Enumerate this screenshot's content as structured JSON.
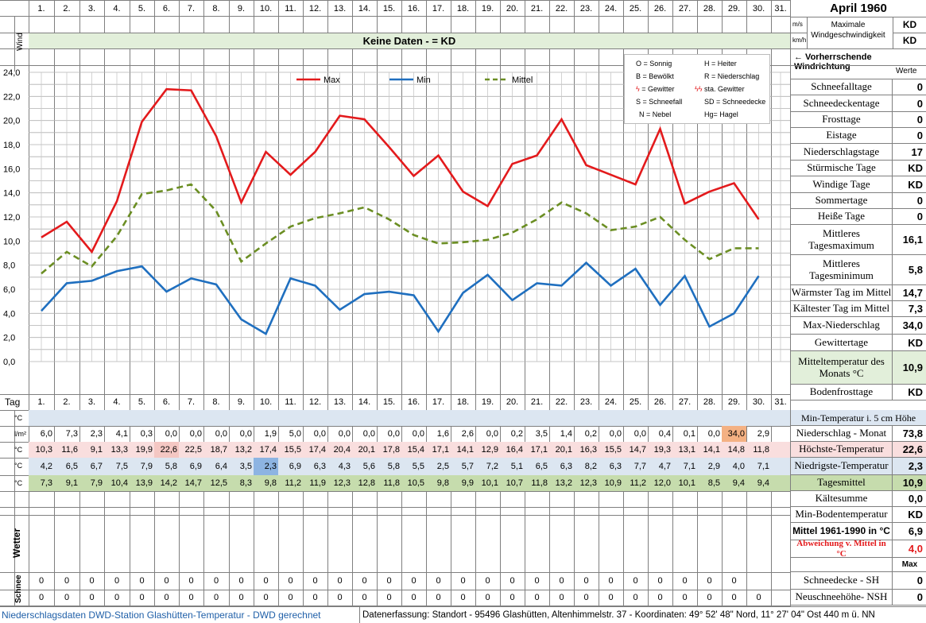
{
  "header": {
    "title": "April 1960",
    "wind_label": "Wind",
    "wind_unit_ms": "m/s",
    "wind_unit_kmh": "km/h",
    "max_wind_label": "Maximale Windgeschwindigkeit",
    "max_wind_ms": "KD",
    "max_wind_kmh": "KD",
    "no_data_banner": "Keine Daten -  = KD",
    "prevailing_wind": "← Vorherrschende Windrichtung",
    "values_header": "Werte"
  },
  "days": [
    "1.",
    "2.",
    "3.",
    "4.",
    "5.",
    "6.",
    "7.",
    "8.",
    "9.",
    "10.",
    "11.",
    "12.",
    "13.",
    "14.",
    "15.",
    "16.",
    "17.",
    "18.",
    "19.",
    "20.",
    "21.",
    "22.",
    "23.",
    "24.",
    "25.",
    "26.",
    "27.",
    "28.",
    "29.",
    "30.",
    "31."
  ],
  "tag_label": "Tag",
  "legend_codes": [
    "O = Sonnig",
    "H = Heiter",
    "B = Bewölkt",
    "R = Niederschlag",
    "= Gewitter",
    "sta. Gewitter",
    "S = Schneefall",
    "SD = Schneedecke",
    "N = Nebel",
    "Hg= Hagel"
  ],
  "chart_data": {
    "type": "line",
    "x": [
      1,
      2,
      3,
      4,
      5,
      6,
      7,
      8,
      9,
      10,
      11,
      12,
      13,
      14,
      15,
      16,
      17,
      18,
      19,
      20,
      21,
      22,
      23,
      24,
      25,
      26,
      27,
      28,
      29,
      30
    ],
    "series": [
      {
        "name": "Max",
        "color": "#e31a1c",
        "values": [
          10.3,
          11.6,
          9.1,
          13.3,
          19.9,
          22.6,
          22.5,
          18.7,
          13.2,
          17.4,
          15.5,
          17.4,
          20.4,
          20.1,
          17.8,
          15.4,
          17.1,
          14.1,
          12.9,
          16.4,
          17.1,
          20.1,
          16.3,
          15.5,
          14.7,
          19.3,
          13.1,
          14.1,
          14.8,
          11.8
        ]
      },
      {
        "name": "Min",
        "color": "#1f6fbf",
        "values": [
          4.2,
          6.5,
          6.7,
          7.5,
          7.9,
          5.8,
          6.9,
          6.4,
          3.5,
          2.3,
          6.9,
          6.3,
          4.3,
          5.6,
          5.8,
          5.5,
          2.5,
          5.7,
          7.2,
          5.1,
          6.5,
          6.3,
          8.2,
          6.3,
          7.7,
          4.7,
          7.1,
          2.9,
          4.0,
          7.1
        ]
      },
      {
        "name": "Mittel",
        "color": "#6b8e23",
        "values": [
          7.3,
          9.1,
          7.9,
          10.4,
          13.9,
          14.2,
          14.7,
          12.5,
          8.3,
          9.8,
          11.2,
          11.9,
          12.3,
          12.8,
          11.8,
          10.5,
          9.8,
          9.9,
          10.1,
          10.7,
          11.8,
          13.2,
          12.3,
          10.9,
          11.2,
          12.0,
          10.1,
          8.5,
          9.4,
          9.4
        ]
      }
    ],
    "y_ticks": [
      "24,0",
      "22,0",
      "20,0",
      "18,0",
      "16,0",
      "14,0",
      "12,0",
      "10,0",
      "8,0",
      "6,0",
      "4,0",
      "2,0",
      "0,0"
    ],
    "ylim": [
      0,
      24
    ],
    "grid": true,
    "legend": "top-center"
  },
  "rows": {
    "unit_c": "°C",
    "unit_lm": "l/m²",
    "precip": [
      "6,0",
      "7,3",
      "2,3",
      "4,1",
      "0,3",
      "0,0",
      "0,0",
      "0,0",
      "0,0",
      "1,9",
      "5,0",
      "0,0",
      "0,0",
      "0,0",
      "0,0",
      "0,0",
      "1,6",
      "2,6",
      "0,0",
      "0,2",
      "3,5",
      "1,4",
      "0,2",
      "0,0",
      "0,0",
      "0,4",
      "0,1",
      "0,0",
      "34,0",
      "2,9",
      ""
    ],
    "max": [
      "10,3",
      "11,6",
      "9,1",
      "13,3",
      "19,9",
      "22,6",
      "22,5",
      "18,7",
      "13,2",
      "17,4",
      "15,5",
      "17,4",
      "20,4",
      "20,1",
      "17,8",
      "15,4",
      "17,1",
      "14,1",
      "12,9",
      "16,4",
      "17,1",
      "20,1",
      "16,3",
      "15,5",
      "14,7",
      "19,3",
      "13,1",
      "14,1",
      "14,8",
      "11,8",
      ""
    ],
    "min": [
      "4,2",
      "6,5",
      "6,7",
      "7,5",
      "7,9",
      "5,8",
      "6,9",
      "6,4",
      "3,5",
      "2,3",
      "6,9",
      "6,3",
      "4,3",
      "5,6",
      "5,8",
      "5,5",
      "2,5",
      "5,7",
      "7,2",
      "5,1",
      "6,5",
      "6,3",
      "8,2",
      "6,3",
      "7,7",
      "4,7",
      "7,1",
      "2,9",
      "4,0",
      "7,1",
      ""
    ],
    "mean": [
      "7,3",
      "9,1",
      "7,9",
      "10,4",
      "13,9",
      "14,2",
      "14,7",
      "12,5",
      "8,3",
      "9,8",
      "11,2",
      "11,9",
      "12,3",
      "12,8",
      "11,8",
      "10,5",
      "9,8",
      "9,9",
      "10,1",
      "10,7",
      "11,8",
      "13,2",
      "12,3",
      "10,9",
      "11,2",
      "12,0",
      "10,1",
      "8,5",
      "9,4",
      "9,4",
      ""
    ],
    "weather_label": "Wetter",
    "snow_label": "Schnee",
    "snow1": [
      "0",
      "0",
      "0",
      "0",
      "0",
      "0",
      "0",
      "0",
      "0",
      "0",
      "0",
      "0",
      "0",
      "0",
      "0",
      "0",
      "0",
      "0",
      "0",
      "0",
      "0",
      "0",
      "0",
      "0",
      "0",
      "0",
      "0",
      "0",
      "0",
      "",
      ""
    ],
    "snow2": [
      "0",
      "0",
      "0",
      "0",
      "0",
      "0",
      "0",
      "0",
      "0",
      "0",
      "0",
      "0",
      "0",
      "0",
      "0",
      "0",
      "0",
      "0",
      "0",
      "0",
      "0",
      "0",
      "0",
      "0",
      "0",
      "0",
      "0",
      "0",
      "0",
      "0",
      ""
    ]
  },
  "stats": [
    {
      "label": "Schneefalltage",
      "value": "0"
    },
    {
      "label": "Schneedeckentage",
      "value": "0"
    },
    {
      "label": "Frosttage",
      "value": "0"
    },
    {
      "label": "Eistage",
      "value": "0"
    },
    {
      "label": "Niederschlagstage",
      "value": "17"
    },
    {
      "label": "Stürmische Tage",
      "value": "KD"
    },
    {
      "label": "Windige Tage",
      "value": "KD"
    },
    {
      "label": "Sommertage",
      "value": "0"
    },
    {
      "label": "Heiße Tage",
      "value": "0"
    },
    {
      "label": "Mittleres Tagesmaximum",
      "value": "16,1"
    },
    {
      "label": "Mittleres Tagesminimum",
      "value": "5,8"
    },
    {
      "label": "Wärmster Tag im Mittel",
      "value": "14,7"
    },
    {
      "label": "Kältester Tag im Mittel",
      "value": "7,3"
    },
    {
      "label": "Max-Niederschlag",
      "value": "34,0"
    },
    {
      "label": "Gewittertage",
      "value": "KD"
    },
    {
      "label": "Mitteltemperatur des Monats °C",
      "value": "10,9"
    },
    {
      "label": "Bodenfrosttage",
      "value": "KD"
    }
  ],
  "right_lower": {
    "min5cm": "Min-Temperatur i. 5 cm Höhe",
    "niederschlag_monat": "Niederschlag - Monat",
    "niederschlag_monat_val": "73,8",
    "hoechste": "Höchste-Temperatur",
    "hoechste_val": "22,6",
    "niedrigste": "Niedrigste-Temperatur",
    "niedrigste_val": "2,3",
    "tagesmittel": "Tagesmittel",
    "tagesmittel_val": "10,9",
    "kaeltesumme": "Kältesumme",
    "kaeltesumme_val": "0,0",
    "minboden": "Min-Bodentemperatur",
    "minboden_val": "KD",
    "mittel6190": "Mittel 1961-1990 in °C",
    "mittel6190_val": "6,9",
    "abweichung": "Abweichung v. Mittel in °C",
    "abweichung_val": "4,0",
    "max_label": "Max",
    "schneedecke": "Schneedecke -  SH",
    "schneedecke_val": "0",
    "neuschnee": "Neuschneehöhe- NSH",
    "neuschnee_val": "0"
  },
  "footer": {
    "left": "Niederschlagsdaten DWD-Station Glashütten-Temperatur -  DWD gerechnet",
    "right": "Datenerfassung: Standort -  95496  Glashütten, Altenhimmelstr. 37 - Koordinaten:  49° 52' 48\" Nord,   11° 27' 04\" Ost   440 m ü. NN"
  }
}
